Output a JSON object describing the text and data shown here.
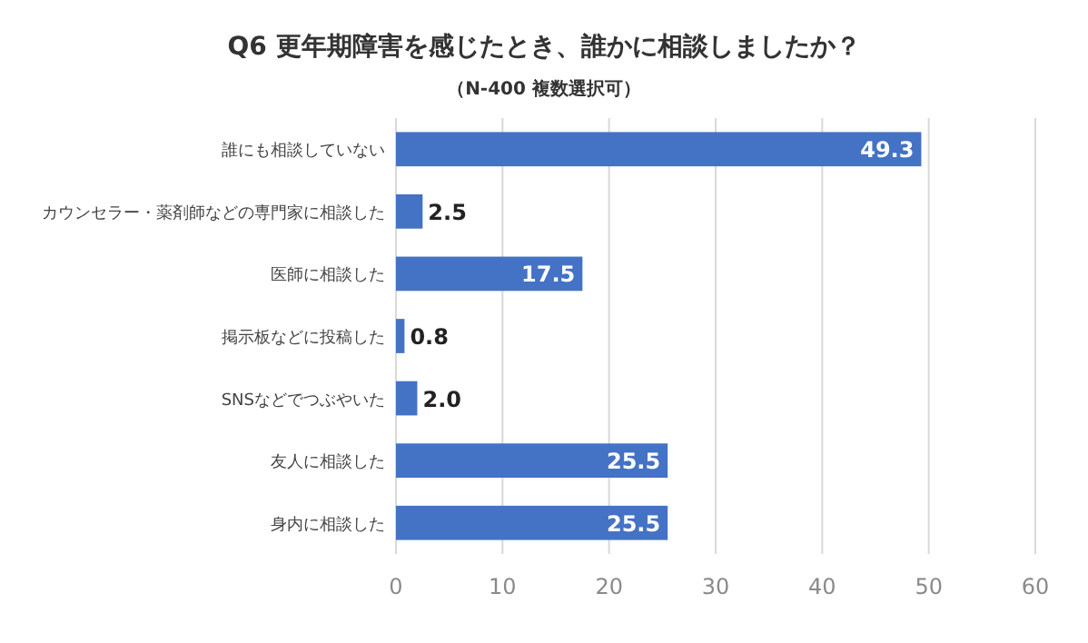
{
  "chart_data": {
    "type": "bar",
    "orientation": "horizontal",
    "title": "Q6 更年期障害を感じたとき、誰かに相談しましたか？",
    "subtitle": "（N-400 複数選択可）",
    "categories": [
      "誰にも相談していない",
      "カウンセラー・薬剤師などの専門家に相談した",
      "医師に相談した",
      "掲示板などに投稿した",
      "SNSなどでつぶやいた",
      "友人に相談した",
      "身内に相談した"
    ],
    "values": [
      49.3,
      2.5,
      17.5,
      0.8,
      2.0,
      25.5,
      25.5
    ],
    "value_labels": [
      "49.3",
      "2.5",
      "17.5",
      "0.8",
      "2.0",
      "25.5",
      "25.5"
    ],
    "color": "#4472c4",
    "xlim": [
      0,
      60
    ],
    "xticks": [
      0,
      10,
      20,
      30,
      40,
      50,
      60
    ],
    "grid": "x"
  }
}
